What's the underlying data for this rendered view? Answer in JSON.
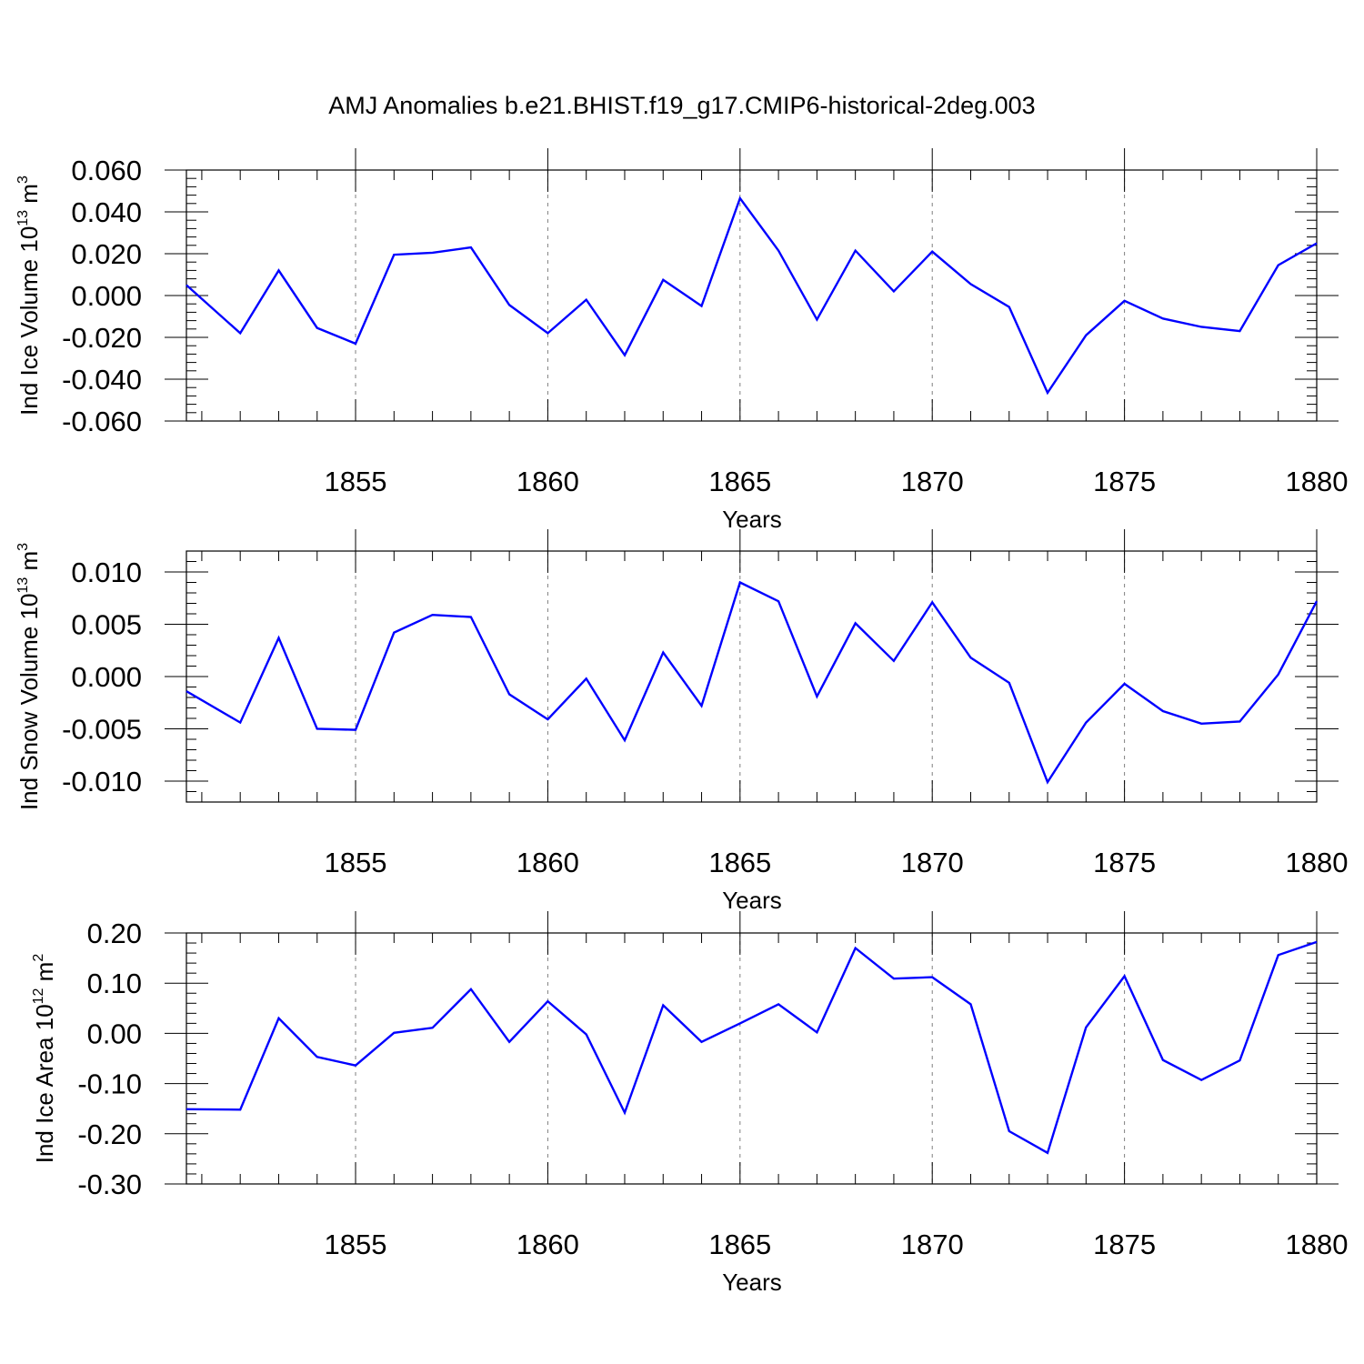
{
  "figure": {
    "title": "AMJ Anomalies b.e21.BHIST.f19_g17.CMIP6-historical-2deg.003",
    "line_color": "#0000ff",
    "grid_color": "#808080"
  },
  "chart_data": [
    {
      "type": "line",
      "xlabel": "Years",
      "ylabel": {
        "main": "Ind Ice Volume 10",
        "exp": "13",
        "unit": " m",
        "unit_exp": "3"
      },
      "xlim": [
        1850.6,
        1880
      ],
      "ylim": [
        -0.06,
        0.06
      ],
      "xticks": [
        1855,
        1860,
        1865,
        1870,
        1875,
        1880
      ],
      "yticks": [
        -0.06,
        -0.04,
        -0.02,
        0.0,
        0.02,
        0.04,
        0.06
      ],
      "ytick_labels": [
        "-0.060",
        "-0.040",
        "-0.020",
        "0.000",
        "0.020",
        "0.040",
        "0.060"
      ],
      "x": [
        1850.6,
        1852,
        1853,
        1854,
        1855,
        1856,
        1857,
        1858,
        1859,
        1860,
        1861,
        1862,
        1863,
        1864,
        1865,
        1866,
        1867,
        1868,
        1869,
        1870,
        1871,
        1872,
        1873,
        1874,
        1875,
        1876,
        1877,
        1878,
        1879,
        1880
      ],
      "series": [
        {
          "values": [
            0.005,
            -0.018,
            0.012,
            -0.0155,
            -0.023,
            0.0195,
            0.0205,
            0.023,
            -0.0045,
            -0.018,
            -0.002,
            -0.0285,
            0.0075,
            -0.005,
            0.0465,
            0.0215,
            -0.0115,
            0.0215,
            0.002,
            0.021,
            0.0055,
            -0.0055,
            -0.0465,
            -0.019,
            -0.0025,
            -0.011,
            -0.015,
            -0.017,
            0.0145,
            0.025
          ]
        }
      ]
    },
    {
      "type": "line",
      "xlabel": "Years",
      "ylabel": {
        "main": "Ind Snow Volume 10",
        "exp": "13",
        "unit": " m",
        "unit_exp": "3"
      },
      "xlim": [
        1850.6,
        1880
      ],
      "ylim": [
        -0.012,
        0.012
      ],
      "xticks": [
        1855,
        1860,
        1865,
        1870,
        1875,
        1880
      ],
      "yticks": [
        -0.01,
        -0.005,
        0.0,
        0.005,
        0.01
      ],
      "ytick_labels": [
        "-0.010",
        "-0.005",
        "0.000",
        "0.005",
        "0.010"
      ],
      "x": [
        1850.6,
        1852,
        1853,
        1854,
        1855,
        1856,
        1857,
        1858,
        1859,
        1860,
        1861,
        1862,
        1863,
        1864,
        1865,
        1866,
        1867,
        1868,
        1869,
        1870,
        1871,
        1872,
        1873,
        1874,
        1875,
        1876,
        1877,
        1878,
        1879,
        1880
      ],
      "series": [
        {
          "values": [
            -0.0014,
            -0.0044,
            0.0037,
            -0.005,
            -0.0051,
            0.0042,
            0.0059,
            0.0057,
            -0.0017,
            -0.0041,
            -0.0002,
            -0.0061,
            0.0023,
            -0.0028,
            0.009,
            0.0072,
            -0.0019,
            0.0051,
            0.0015,
            0.0071,
            0.0018,
            -0.0006,
            -0.0101,
            -0.0044,
            -0.0007,
            -0.0033,
            -0.0045,
            -0.0043,
            0.0002,
            0.0072
          ]
        }
      ]
    },
    {
      "type": "line",
      "xlabel": "Years",
      "ylabel": {
        "main": "Ind Ice Area 10",
        "exp": "12",
        "unit": " m",
        "unit_exp": "2"
      },
      "xlim": [
        1850.6,
        1880
      ],
      "ylim": [
        -0.3,
        0.2
      ],
      "xticks": [
        1855,
        1860,
        1865,
        1870,
        1875,
        1880
      ],
      "yticks": [
        -0.3,
        -0.2,
        -0.1,
        0.0,
        0.1,
        0.2
      ],
      "ytick_labels": [
        "-0.30",
        "-0.20",
        "-0.10",
        "0.00",
        "0.10",
        "0.20"
      ],
      "x": [
        1850.6,
        1852,
        1853,
        1854,
        1855,
        1856,
        1857,
        1858,
        1859,
        1860,
        1861,
        1862,
        1863,
        1864,
        1865,
        1866,
        1867,
        1868,
        1869,
        1870,
        1871,
        1872,
        1873,
        1874,
        1875,
        1876,
        1877,
        1878,
        1879,
        1880
      ],
      "series": [
        {
          "values": [
            -0.151,
            -0.152,
            0.03,
            -0.047,
            -0.064,
            0.001,
            0.011,
            0.088,
            -0.017,
            0.064,
            -0.002,
            -0.158,
            0.056,
            -0.017,
            0.02,
            0.058,
            0.002,
            0.17,
            0.109,
            0.112,
            0.058,
            -0.195,
            -0.238,
            0.012,
            0.114,
            -0.053,
            -0.093,
            -0.054,
            0.156,
            0.182
          ]
        }
      ]
    }
  ]
}
